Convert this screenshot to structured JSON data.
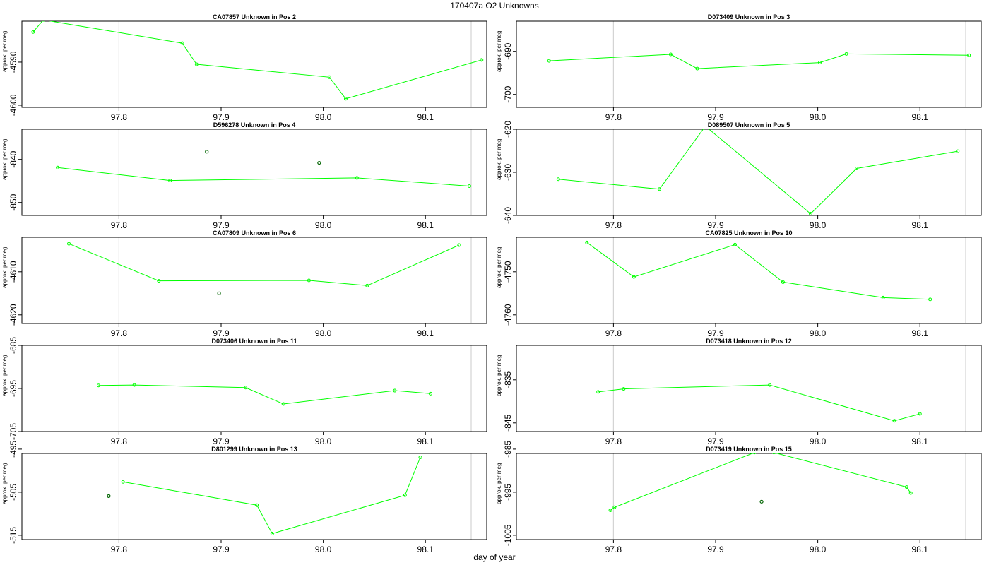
{
  "title": "170407a  O2 Unknowns",
  "xlabel": "day of year",
  "colors": {
    "line": "#00ff00",
    "extra_point": "#006400",
    "vline": "#d3d3d3",
    "frame": "#000000"
  },
  "chart_data": [
    {
      "type": "line",
      "title": "CA07857    Unknown in Pos 2",
      "ylabel": "approx. per meg",
      "xlim": [
        97.705,
        98.16
      ],
      "ylim": [
        -4600.5,
        -4580.5
      ],
      "xticks": [
        97.8,
        97.9,
        98.0,
        98.1
      ],
      "yticks": [
        -4590,
        -4600
      ],
      "x": [
        97.716,
        97.726,
        97.862,
        97.876,
        98.006,
        98.022,
        98.155
      ],
      "y": [
        -4583.0,
        -4580.2,
        -4585.6,
        -4590.5,
        -4593.5,
        -4598.5,
        -4589.5
      ],
      "extra_points": []
    },
    {
      "type": "line",
      "title": "D073409    Unknown in Pos 3",
      "ylabel": "approx. per meg",
      "xlim": [
        97.705,
        98.16
      ],
      "ylim": [
        -703.0,
        -683.0
      ],
      "xticks": [
        97.8,
        97.9,
        98.0,
        98.1
      ],
      "yticks": [
        -690,
        -700
      ],
      "x": [
        97.737,
        97.856,
        97.882,
        98.002,
        98.028,
        98.148
      ],
      "y": [
        -692.2,
        -690.7,
        -694.0,
        -692.6,
        -690.6,
        -690.9
      ],
      "extra_points": []
    },
    {
      "type": "line",
      "title": "D596278    Unknown in Pos 4",
      "ylabel": "approx. per meg",
      "xlim": [
        97.705,
        98.16
      ],
      "ylim": [
        -853.0,
        -833.0
      ],
      "xticks": [
        97.8,
        97.9,
        98.0,
        98.1
      ],
      "yticks": [
        -840,
        -850
      ],
      "x": [
        97.74,
        97.85,
        98.033,
        98.143
      ],
      "y": [
        -841.9,
        -844.9,
        -844.3,
        -846.2
      ],
      "extra_points": [
        {
          "x": 97.886,
          "y": -838.2
        },
        {
          "x": 97.996,
          "y": -840.8
        }
      ]
    },
    {
      "type": "line",
      "title": "D089507    Unknown in Pos 5",
      "ylabel": "approx. per meg",
      "xlim": [
        97.705,
        98.16
      ],
      "ylim": [
        -640.0,
        -620.0
      ],
      "xticks": [
        97.8,
        97.9,
        98.0,
        98.1
      ],
      "yticks": [
        -620,
        -630,
        -640
      ],
      "x": [
        97.746,
        97.845,
        97.89,
        97.993,
        98.038,
        98.137
      ],
      "y": [
        -631.6,
        -633.9,
        -619.3,
        -639.6,
        -629.1,
        -625.1
      ],
      "extra_points": []
    },
    {
      "type": "line",
      "title": "CA07809    Unknown in Pos 6",
      "ylabel": "approx. per meg",
      "xlim": [
        97.705,
        98.16
      ],
      "ylim": [
        -4622.0,
        -4602.0
      ],
      "xticks": [
        97.8,
        97.9,
        98.0,
        98.1
      ],
      "yticks": [
        -4610,
        -4620
      ],
      "x": [
        97.751,
        97.839,
        97.986,
        98.043,
        98.133
      ],
      "y": [
        -4603.5,
        -4612.1,
        -4612.0,
        -4613.2,
        -4603.8
      ],
      "extra_points": [
        {
          "x": 97.898,
          "y": -4615.0
        }
      ]
    },
    {
      "type": "line",
      "title": "CA07825    Unknown in Pos 10",
      "ylabel": "approx. per meg",
      "xlim": [
        97.705,
        98.16
      ],
      "ylim": [
        -4762.0,
        -4742.0
      ],
      "xticks": [
        97.8,
        97.9,
        98.0,
        98.1
      ],
      "yticks": [
        -4750,
        -4760
      ],
      "x": [
        97.774,
        97.82,
        97.919,
        97.966,
        98.064,
        98.11
      ],
      "y": [
        -4743.2,
        -4751.2,
        -4743.7,
        -4752.4,
        -4756.0,
        -4756.4
      ],
      "extra_points": []
    },
    {
      "type": "line",
      "title": "D073406    Unknown in Pos 11",
      "ylabel": "approx. per meg",
      "xlim": [
        97.705,
        98.16
      ],
      "ylim": [
        -705.0,
        -685.0
      ],
      "xticks": [
        97.8,
        97.9,
        98.0,
        98.1
      ],
      "yticks": [
        -685,
        -695,
        -705
      ],
      "x": [
        97.78,
        97.815,
        97.924,
        97.961,
        98.07,
        98.105
      ],
      "y": [
        -694.3,
        -694.2,
        -694.8,
        -698.6,
        -695.5,
        -696.2
      ],
      "extra_points": []
    },
    {
      "type": "line",
      "title": "D073418    Unknown in Pos 12",
      "ylabel": "approx. per meg",
      "xlim": [
        97.705,
        98.16
      ],
      "ylim": [
        -847.0,
        -827.0
      ],
      "xticks": [
        97.8,
        97.9,
        98.0,
        98.1
      ],
      "yticks": [
        -835,
        -845
      ],
      "x": [
        97.785,
        97.81,
        97.953,
        98.075,
        98.1
      ],
      "y": [
        -837.8,
        -837.1,
        -836.2,
        -844.5,
        -842.9
      ],
      "extra_points": []
    },
    {
      "type": "line",
      "title": "D801299    Unknown in Pos 13",
      "ylabel": "approx. per meg",
      "xlim": [
        97.705,
        98.16
      ],
      "ylim": [
        -516.0,
        -496.0
      ],
      "xticks": [
        97.8,
        97.9,
        98.0,
        98.1
      ],
      "yticks": [
        -495,
        -505,
        -515
      ],
      "x": [
        97.804,
        97.935,
        97.95,
        98.08,
        98.095
      ],
      "y": [
        -502.6,
        -508.0,
        -514.6,
        -505.7,
        -496.9
      ],
      "extra_points": [
        {
          "x": 97.79,
          "y": -505.9
        }
      ]
    },
    {
      "type": "line",
      "title": "D073419    Unknown in Pos 15",
      "ylabel": "approx. per meg",
      "xlim": [
        97.705,
        98.16
      ],
      "ylim": [
        -1006.0,
        -986.0
      ],
      "xticks": [
        97.8,
        97.9,
        98.0,
        98.1
      ],
      "yticks": [
        -985,
        -995,
        -1005
      ],
      "x": [
        97.797,
        97.801,
        97.938,
        97.957,
        98.087,
        98.091
      ],
      "y": [
        -999.2,
        -998.5,
        -985.8,
        -985.8,
        -993.8,
        -995.2
      ],
      "extra_points": [
        {
          "x": 97.945,
          "y": -997.2
        }
      ]
    }
  ]
}
